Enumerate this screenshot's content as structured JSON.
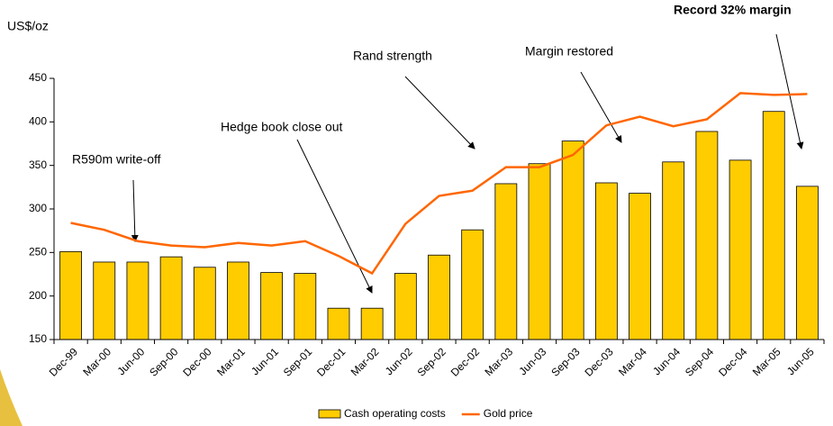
{
  "chart_data": {
    "type": "bar_line",
    "y_label": "US$/oz",
    "categories": [
      "Dec-99",
      "Mar-00",
      "Jun-00",
      "Sep-00",
      "Dec-00",
      "Mar-01",
      "Jun-01",
      "Sep-01",
      "Dec-01",
      "Mar-02",
      "Jun-02",
      "Sep-02",
      "Dec-02",
      "Mar-03",
      "Jun-03",
      "Sep-03",
      "Dec-03",
      "Mar-04",
      "Jun-04",
      "Sep-04",
      "Dec-04",
      "Mar-05",
      "Jun-05"
    ],
    "series": [
      {
        "name": "Cash operating costs",
        "type": "bar",
        "color": "#ffcc00",
        "values": [
          251,
          239,
          239,
          245,
          233,
          239,
          227,
          226,
          186,
          186,
          226,
          247,
          276,
          329,
          352,
          378,
          330,
          318,
          354,
          389,
          356,
          412,
          326
        ]
      },
      {
        "name": "Gold price",
        "type": "line",
        "color": "#ff6600",
        "values": [
          284,
          276,
          263,
          258,
          256,
          261,
          258,
          263,
          246,
          226,
          283,
          315,
          321,
          348,
          348,
          362,
          396,
          406,
          395,
          403,
          433,
          431,
          432
        ]
      }
    ],
    "ylim": [
      150,
      450
    ],
    "yticks": [
      150,
      200,
      250,
      300,
      350,
      400,
      450
    ],
    "annotations": [
      "R590m write-off",
      "Hedge book close out",
      "Rand strength",
      "Margin restored",
      "Record 32% margin"
    ]
  }
}
